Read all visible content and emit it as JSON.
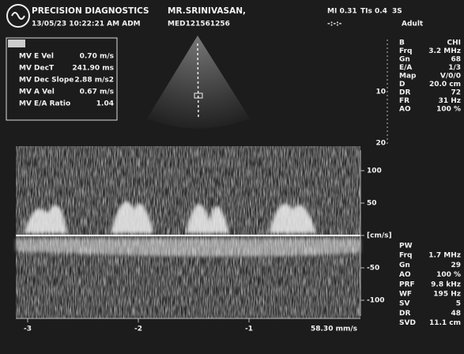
{
  "header": {
    "clinic": "PRECISION DIAGNOSTICS",
    "patient": "MR.SRINIVASAN,",
    "datetime": "13/05/23 10:22:21 AM ADM",
    "patient_id": "MED121561256",
    "mi": "MI 0.31",
    "tis": "TIs 0.4",
    "probe": "3S",
    "preset": "Adult",
    "timer": "-:-:-"
  },
  "measurements": [
    {
      "label": "MV E Vel",
      "value": "0.70 m/s"
    },
    {
      "label": "MV DecT",
      "value": "241.90 ms"
    },
    {
      "label": "MV Dec Slope",
      "value": "2.88 m/s2"
    },
    {
      "label": "MV A Vel",
      "value": "0.67 m/s"
    },
    {
      "label": "MV E/A Ratio",
      "value": "1.04"
    }
  ],
  "bmode_settings": [
    {
      "label": "B",
      "value": "CHI"
    },
    {
      "label": "Frq",
      "value": "3.2 MHz"
    },
    {
      "label": "Gn",
      "value": "68"
    },
    {
      "label": "E/A",
      "value": "1/3"
    },
    {
      "label": "Map",
      "value": "V/0/0"
    },
    {
      "label": "D",
      "value": "20.0 cm"
    },
    {
      "label": "DR",
      "value": "72"
    },
    {
      "label": "FR",
      "value": "31 Hz"
    },
    {
      "label": "AO",
      "value": "100 %"
    }
  ],
  "depth_scale": [
    "10",
    "20"
  ],
  "pw_settings": [
    {
      "label": "PW",
      "value": ""
    },
    {
      "label": "Frq",
      "value": "1.7 MHz"
    },
    {
      "label": "Gn",
      "value": "29"
    },
    {
      "label": "AO",
      "value": "100 %"
    },
    {
      "label": "PRF",
      "value": "9.8 kHz"
    },
    {
      "label": "WF",
      "value": "195 Hz"
    },
    {
      "label": "SV",
      "value": "5"
    },
    {
      "label": "DR",
      "value": "48"
    },
    {
      "label": "SVD",
      "value": "11.1 cm"
    }
  ],
  "velocity_scale": [
    "100",
    "50",
    "[cm/s]",
    "-50",
    "-100"
  ],
  "time_scale": [
    "-3",
    "-2",
    "-1"
  ],
  "sweep_speed": "58.30 mm/s"
}
